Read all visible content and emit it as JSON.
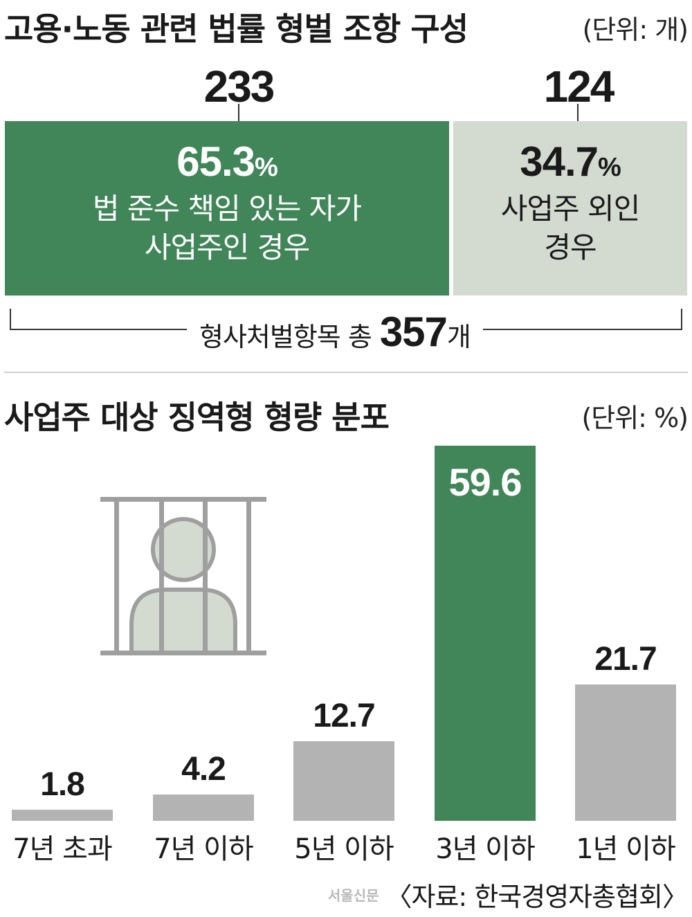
{
  "section1": {
    "title": "고용·노동 관련 법률 형벌 조항 구성",
    "unit": "(단위: 개)",
    "green": {
      "count": "233",
      "percent": "65.3",
      "percent_sign": "%",
      "line1": "법 준수 책임 있는 자가",
      "line2": "사업주인 경우"
    },
    "gray": {
      "count": "124",
      "percent": "34.7",
      "percent_sign": "%",
      "line1": "사업주 외인",
      "line2": "경우"
    },
    "total": {
      "prefix": "형사처벌항목 총",
      "number": "357",
      "suffix": "개"
    }
  },
  "section2": {
    "title": "사업주 대상 징역형 형량 분포",
    "unit": "(단위: %)"
  },
  "colors": {
    "green": "#418659",
    "light_green": "#d3dbd1",
    "gray_bar": "#b3b3b3",
    "icon_gray": "#9f9f9f",
    "icon_fill": "#d3dbd1"
  },
  "icon": "prisoner-behind-bars-icon",
  "chart_data": {
    "type": "bar",
    "categories": [
      "7년 초과",
      "7년 이하",
      "5년 이하",
      "3년 이하",
      "1년 이하"
    ],
    "values": [
      1.8,
      4.2,
      12.7,
      59.6,
      21.7
    ],
    "value_labels": [
      "1.8",
      "4.2",
      "12.7",
      "59.6",
      "21.7"
    ],
    "highlight_index": 3,
    "ylim": [
      0,
      59.6
    ]
  },
  "source": {
    "logo": "서울신문",
    "text": "〈자료: 한국경영자총협회〉"
  }
}
